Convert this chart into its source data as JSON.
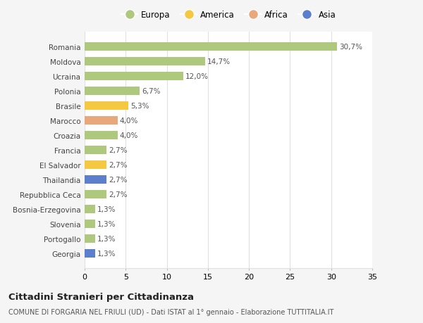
{
  "categories": [
    "Romania",
    "Moldova",
    "Ucraina",
    "Polonia",
    "Brasile",
    "Marocco",
    "Croazia",
    "Francia",
    "El Salvador",
    "Thailandia",
    "Repubblica Ceca",
    "Bosnia-Erzegovina",
    "Slovenia",
    "Portogallo",
    "Georgia"
  ],
  "values": [
    30.7,
    14.7,
    12.0,
    6.7,
    5.3,
    4.0,
    4.0,
    2.7,
    2.7,
    2.7,
    2.7,
    1.3,
    1.3,
    1.3,
    1.3
  ],
  "labels": [
    "30,7%",
    "14,7%",
    "12,0%",
    "6,7%",
    "5,3%",
    "4,0%",
    "4,0%",
    "2,7%",
    "2,7%",
    "2,7%",
    "2,7%",
    "1,3%",
    "1,3%",
    "1,3%",
    "1,3%"
  ],
  "colors": [
    "#aec97e",
    "#aec97e",
    "#aec97e",
    "#aec97e",
    "#f5c842",
    "#e8a87c",
    "#aec97e",
    "#aec97e",
    "#f5c842",
    "#5b7fcc",
    "#aec97e",
    "#aec97e",
    "#aec97e",
    "#aec97e",
    "#5b7fcc"
  ],
  "legend_labels": [
    "Europa",
    "America",
    "Africa",
    "Asia"
  ],
  "legend_colors": [
    "#aec97e",
    "#f5c842",
    "#e8a87c",
    "#5b7fcc"
  ],
  "title": "Cittadini Stranieri per Cittadinanza",
  "subtitle": "COMUNE DI FORGARIA NEL FRIULI (UD) - Dati ISTAT al 1° gennaio - Elaborazione TUTTITALIA.IT",
  "xlim": [
    0,
    35
  ],
  "xticks": [
    0,
    5,
    10,
    15,
    20,
    25,
    30,
    35
  ],
  "background_color": "#f5f5f5",
  "bar_background": "#ffffff",
  "grid_color": "#e0e0e0"
}
